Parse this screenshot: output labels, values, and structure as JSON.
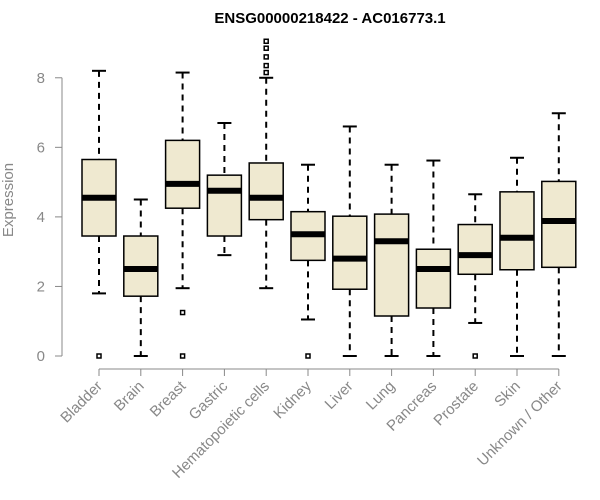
{
  "chart_data": {
    "type": "boxplot",
    "title": "ENSG00000218422 - AC016773.1",
    "xlabel": "",
    "ylabel": "Expression",
    "ylim": [
      0,
      9
    ],
    "yticks": [
      0,
      2,
      4,
      6,
      8
    ],
    "box_fill": "#efe9d0",
    "categories": [
      "Bladder",
      "Brain",
      "Breast",
      "Gastric",
      "Hematopoietic cells",
      "Kidney",
      "Liver",
      "Lung",
      "Pancreas",
      "Prostate",
      "Skin",
      "Unknown / Other"
    ],
    "series": [
      {
        "name": "Bladder",
        "min": 1.8,
        "q1": 3.45,
        "median": 4.55,
        "q3": 5.65,
        "max": 8.2,
        "outliers": [
          0
        ]
      },
      {
        "name": "Brain",
        "min": 0,
        "q1": 1.72,
        "median": 2.5,
        "q3": 3.45,
        "max": 4.5,
        "outliers": []
      },
      {
        "name": "Breast",
        "min": 1.95,
        "q1": 4.25,
        "median": 4.95,
        "q3": 6.2,
        "max": 8.15,
        "outliers": [
          1.25,
          0
        ]
      },
      {
        "name": "Gastric",
        "min": 2.9,
        "q1": 3.45,
        "median": 4.75,
        "q3": 5.2,
        "max": 6.7,
        "outliers": []
      },
      {
        "name": "Hematopoietic cells",
        "min": 1.95,
        "q1": 3.92,
        "median": 4.55,
        "q3": 5.55,
        "max": 8.0,
        "outliers": [
          8.15,
          8.35,
          8.6,
          8.85,
          9.05
        ]
      },
      {
        "name": "Kidney",
        "min": 1.05,
        "q1": 2.75,
        "median": 3.5,
        "q3": 4.15,
        "max": 5.5,
        "outliers": [
          0
        ]
      },
      {
        "name": "Liver",
        "min": 0,
        "q1": 1.92,
        "median": 2.8,
        "q3": 4.02,
        "max": 6.6,
        "outliers": []
      },
      {
        "name": "Lung",
        "min": 0,
        "q1": 1.15,
        "median": 3.3,
        "q3": 4.08,
        "max": 5.5,
        "outliers": []
      },
      {
        "name": "Pancreas",
        "min": 0,
        "q1": 1.38,
        "median": 2.5,
        "q3": 3.07,
        "max": 5.62,
        "outliers": []
      },
      {
        "name": "Prostate",
        "min": 0.95,
        "q1": 2.35,
        "median": 2.9,
        "q3": 3.78,
        "max": 4.65,
        "outliers": [
          0
        ]
      },
      {
        "name": "Skin",
        "min": 0,
        "q1": 2.48,
        "median": 3.4,
        "q3": 4.72,
        "max": 5.7,
        "outliers": []
      },
      {
        "name": "Unknown / Other",
        "min": 0,
        "q1": 2.55,
        "median": 3.88,
        "q3": 5.02,
        "max": 6.98,
        "outliers": []
      }
    ]
  }
}
